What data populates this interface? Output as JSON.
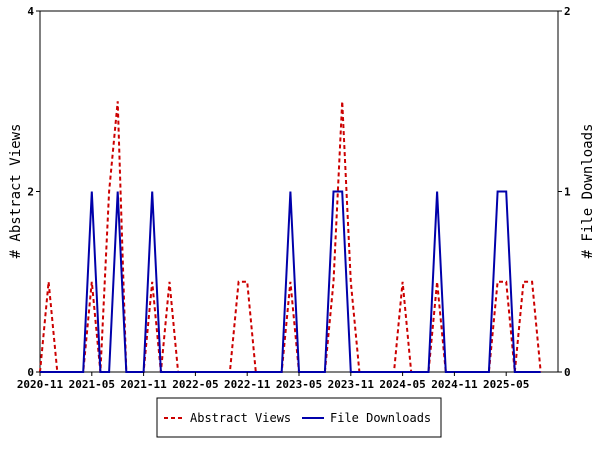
{
  "chart_data": {
    "type": "line",
    "y_left_label": "# Abstract Views",
    "y_right_label": "# File Downloads",
    "y_left_range": [
      0,
      4
    ],
    "y_right_range": [
      0,
      2
    ],
    "y_left_ticks": [
      "0",
      "2",
      "4"
    ],
    "y_right_ticks": [
      "0",
      "1",
      "2"
    ],
    "x_range": [
      "2020-11",
      "2025-11"
    ],
    "x_tick_labels": [
      "2020-11",
      "2021-05",
      "2021-11",
      "2022-05",
      "2022-11",
      "2023-05",
      "2023-11",
      "2024-05",
      "2024-11",
      "2025-05"
    ],
    "legend_position": "bottom",
    "series": [
      {
        "name": "Abstract Views",
        "axis": "left",
        "color": "#cc0000",
        "style": "dashed",
        "points": [
          [
            "2020-11",
            0
          ],
          [
            "2020-12",
            1
          ],
          [
            "2021-01",
            0
          ],
          [
            "2021-02",
            0
          ],
          [
            "2021-03",
            0
          ],
          [
            "2021-04",
            0
          ],
          [
            "2021-05",
            1
          ],
          [
            "2021-06",
            0
          ],
          [
            "2021-07",
            2
          ],
          [
            "2021-08",
            3
          ],
          [
            "2021-09",
            0
          ],
          [
            "2021-10",
            0
          ],
          [
            "2021-11",
            0
          ],
          [
            "2021-12",
            1
          ],
          [
            "2022-01",
            0
          ],
          [
            "2022-02",
            1
          ],
          [
            "2022-03",
            0
          ],
          [
            "2022-04",
            0
          ],
          [
            "2022-05",
            0
          ],
          [
            "2022-06",
            0
          ],
          [
            "2022-07",
            0
          ],
          [
            "2022-08",
            0
          ],
          [
            "2022-09",
            0
          ],
          [
            "2022-10",
            1
          ],
          [
            "2022-11",
            1
          ],
          [
            "2022-12",
            0
          ],
          [
            "2023-01",
            0
          ],
          [
            "2023-02",
            0
          ],
          [
            "2023-03",
            0
          ],
          [
            "2023-04",
            1
          ],
          [
            "2023-05",
            0
          ],
          [
            "2023-06",
            0
          ],
          [
            "2023-07",
            0
          ],
          [
            "2023-08",
            0
          ],
          [
            "2023-09",
            1
          ],
          [
            "2023-10",
            3
          ],
          [
            "2023-11",
            1
          ],
          [
            "2023-12",
            0
          ],
          [
            "2024-01",
            0
          ],
          [
            "2024-02",
            0
          ],
          [
            "2024-03",
            0
          ],
          [
            "2024-04",
            0
          ],
          [
            "2024-05",
            1
          ],
          [
            "2024-06",
            0
          ],
          [
            "2024-07",
            0
          ],
          [
            "2024-08",
            0
          ],
          [
            "2024-09",
            1
          ],
          [
            "2024-10",
            0
          ],
          [
            "2024-11",
            0
          ],
          [
            "2024-12",
            0
          ],
          [
            "2025-01",
            0
          ],
          [
            "2025-02",
            0
          ],
          [
            "2025-03",
            0
          ],
          [
            "2025-04",
            1
          ],
          [
            "2025-05",
            1
          ],
          [
            "2025-06",
            0
          ],
          [
            "2025-07",
            1
          ],
          [
            "2025-08",
            1
          ],
          [
            "2025-09",
            0
          ]
        ]
      },
      {
        "name": "File Downloads",
        "axis": "right",
        "color": "#0000aa",
        "style": "solid",
        "points": [
          [
            "2020-11",
            0
          ],
          [
            "2020-12",
            0
          ],
          [
            "2021-01",
            0
          ],
          [
            "2021-02",
            0
          ],
          [
            "2021-03",
            0
          ],
          [
            "2021-04",
            0
          ],
          [
            "2021-05",
            1
          ],
          [
            "2021-06",
            0
          ],
          [
            "2021-07",
            0
          ],
          [
            "2021-08",
            1
          ],
          [
            "2021-09",
            0
          ],
          [
            "2021-10",
            0
          ],
          [
            "2021-11",
            0
          ],
          [
            "2021-12",
            1
          ],
          [
            "2022-01",
            0
          ],
          [
            "2022-02",
            0
          ],
          [
            "2022-03",
            0
          ],
          [
            "2022-04",
            0
          ],
          [
            "2022-05",
            0
          ],
          [
            "2022-06",
            0
          ],
          [
            "2022-07",
            0
          ],
          [
            "2022-08",
            0
          ],
          [
            "2022-09",
            0
          ],
          [
            "2022-10",
            0
          ],
          [
            "2022-11",
            0
          ],
          [
            "2022-12",
            0
          ],
          [
            "2023-01",
            0
          ],
          [
            "2023-02",
            0
          ],
          [
            "2023-03",
            0
          ],
          [
            "2023-04",
            1
          ],
          [
            "2023-05",
            0
          ],
          [
            "2023-06",
            0
          ],
          [
            "2023-07",
            0
          ],
          [
            "2023-08",
            0
          ],
          [
            "2023-09",
            1
          ],
          [
            "2023-10",
            1
          ],
          [
            "2023-11",
            0
          ],
          [
            "2023-12",
            0
          ],
          [
            "2024-01",
            0
          ],
          [
            "2024-02",
            0
          ],
          [
            "2024-03",
            0
          ],
          [
            "2024-04",
            0
          ],
          [
            "2024-05",
            0
          ],
          [
            "2024-06",
            0
          ],
          [
            "2024-07",
            0
          ],
          [
            "2024-08",
            0
          ],
          [
            "2024-09",
            1
          ],
          [
            "2024-10",
            0
          ],
          [
            "2024-11",
            0
          ],
          [
            "2024-12",
            0
          ],
          [
            "2025-01",
            0
          ],
          [
            "2025-02",
            0
          ],
          [
            "2025-03",
            0
          ],
          [
            "2025-04",
            1
          ],
          [
            "2025-05",
            1
          ],
          [
            "2025-06",
            0
          ],
          [
            "2025-07",
            0
          ],
          [
            "2025-08",
            0
          ],
          [
            "2025-09",
            0
          ]
        ]
      }
    ]
  }
}
